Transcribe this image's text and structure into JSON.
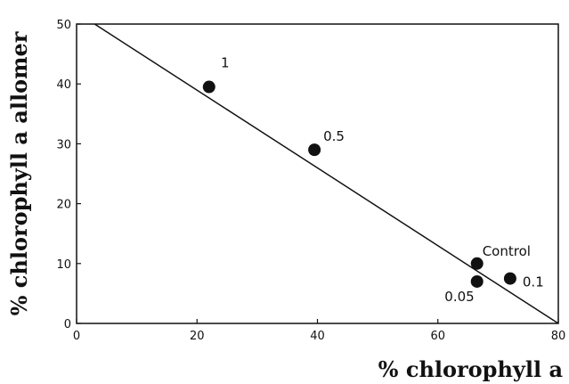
{
  "chart_data": {
    "type": "scatter",
    "xlabel": "% chlorophyll a",
    "ylabel": "% chlorophyll a allomer",
    "xlim": [
      0,
      80
    ],
    "ylim": [
      0,
      50
    ],
    "xticks": [
      "0",
      "20",
      "40",
      "60",
      "80"
    ],
    "yticks": [
      "0",
      "10",
      "20",
      "30",
      "40",
      "50"
    ],
    "series": [
      {
        "points": [
          {
            "x": 22,
            "y": 39.5,
            "label": "1"
          },
          {
            "x": 39.5,
            "y": 29,
            "label": "0.5"
          },
          {
            "x": 66.5,
            "y": 10,
            "label": "Control"
          },
          {
            "x": 66.5,
            "y": 7,
            "label": "0.05"
          },
          {
            "x": 72,
            "y": 7.5,
            "label": "0.1"
          }
        ]
      }
    ],
    "fit_line": {
      "x": [
        3,
        80
      ],
      "y": [
        50,
        0
      ]
    },
    "grid": false,
    "legend": "none"
  }
}
